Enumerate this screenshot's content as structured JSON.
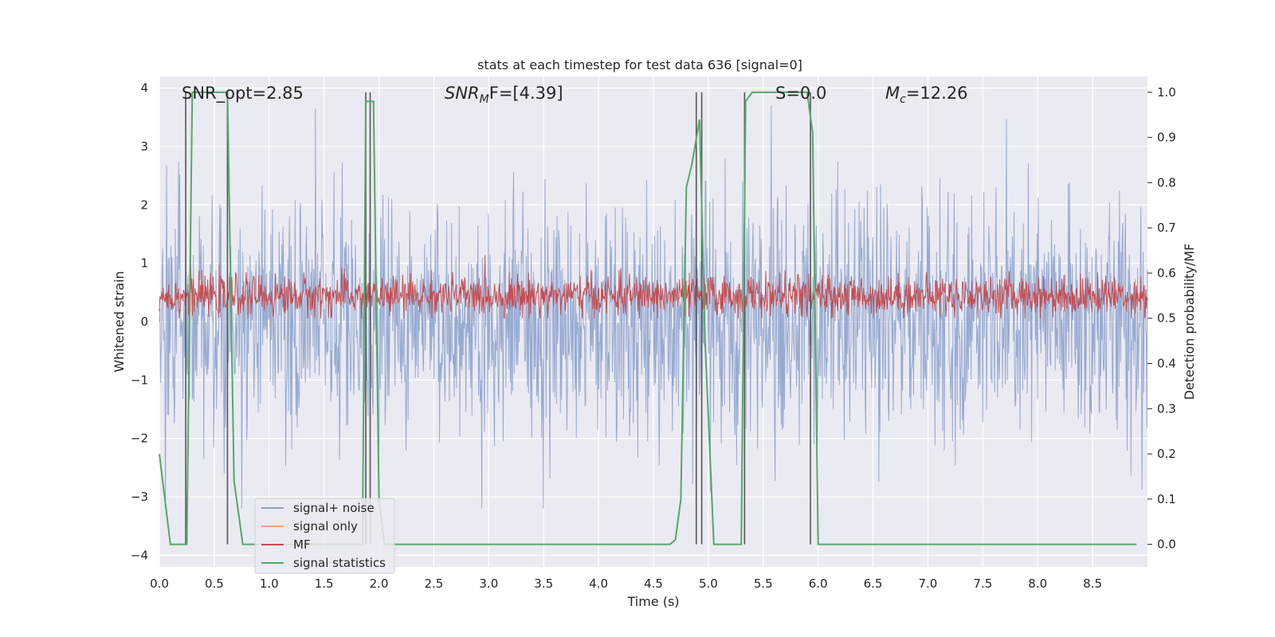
{
  "chart_data": {
    "type": "line",
    "title": "stats at each timestep for test data 636 [signal=0]",
    "xlabel": "Time (s)",
    "ylabel_left": "Whitened strain",
    "ylabel_right": "Detection probability/MF",
    "xlim": [
      0,
      9.0
    ],
    "ylim_left": [
      -4.2,
      4.2
    ],
    "ylim_right": [
      -0.05,
      1.035
    ],
    "xticks": [
      0.0,
      0.5,
      1.0,
      1.5,
      2.0,
      2.5,
      3.0,
      3.5,
      4.0,
      4.5,
      5.0,
      5.5,
      6.0,
      6.5,
      7.0,
      7.5,
      8.0,
      8.5
    ],
    "xtick_labels": [
      "0.0",
      "0.5",
      "1.0",
      "1.5",
      "2.0",
      "2.5",
      "3.0",
      "3.5",
      "4.0",
      "4.5",
      "5.0",
      "5.5",
      "6.0",
      "6.5",
      "7.0",
      "7.5",
      "8.0",
      "8.5"
    ],
    "yticks_left": [
      -4,
      -3,
      -2,
      -1,
      0,
      1,
      2,
      3,
      4
    ],
    "ytick_labels_left": [
      "−4",
      "−3",
      "−2",
      "−1",
      "0",
      "1",
      "2",
      "3",
      "4"
    ],
    "yticks_right": [
      0.0,
      0.1,
      0.2,
      0.3,
      0.4,
      0.5,
      0.6,
      0.7,
      0.8,
      0.9,
      1.0
    ],
    "ytick_labels_right": [
      "0.0",
      "0.1",
      "0.2",
      "0.3",
      "0.4",
      "0.5",
      "0.6",
      "0.7",
      "0.8",
      "0.9",
      "1.0"
    ],
    "annotations": {
      "snr_opt": "SNR_opt=2.85",
      "snr_mf_prefix": "SNR",
      "snr_mf_sub": "M",
      "snr_mf_suffix": "F=[4.39]",
      "s_value": "S=0.0",
      "mc_prefix": "M",
      "mc_sub": "c",
      "mc_suffix": "=12.26"
    },
    "legend": {
      "position": "lower-left",
      "entries": [
        {
          "label": "signal+ noise",
          "color": "#8da0cb"
        },
        {
          "label": "signal only",
          "color": "#f0a080"
        },
        {
          "label": "MF",
          "color": "#c44e52"
        },
        {
          "label": "signal statistics",
          "color": "#55a868"
        }
      ]
    },
    "series": [
      {
        "name": "signal+ noise",
        "axis": "left",
        "color": "#92a6cf",
        "description": "whitened strain noise, approx. range -3.2 to 3.7",
        "envelope_min": -3.2,
        "envelope_max": 3.7
      },
      {
        "name": "MF",
        "axis": "right",
        "color": "#c44e52",
        "description": "matched filter output, approx. 0.50 to 0.64",
        "baseline": 0.55,
        "envelope_min": 0.5,
        "envelope_max": 0.64
      },
      {
        "name": "signal statistics",
        "axis": "right",
        "color": "#55a868",
        "x": [
          0.0,
          0.05,
          0.1,
          0.25,
          0.3,
          0.62,
          0.68,
          0.76,
          0.8,
          1.85,
          1.88,
          1.95,
          2.0,
          2.05,
          2.1,
          4.65,
          4.7,
          4.75,
          4.8,
          4.85,
          4.92,
          4.97,
          5.05,
          5.3,
          5.34,
          5.4,
          5.9,
          5.95,
          6.0,
          8.9
        ],
        "y": [
          0.2,
          0.1,
          0.0,
          0.0,
          1.0,
          1.0,
          0.14,
          0.0,
          0.0,
          0.0,
          0.98,
          0.98,
          0.1,
          0.0,
          0.0,
          0.0,
          0.01,
          0.1,
          0.79,
          0.84,
          0.94,
          0.45,
          0.0,
          0.0,
          0.98,
          1.0,
          1.0,
          0.91,
          0.0,
          0.0
        ]
      }
    ],
    "vertical_lines": [
      0.24,
      0.62,
      1.88,
      1.92,
      4.89,
      4.94,
      5.33,
      5.93
    ]
  }
}
